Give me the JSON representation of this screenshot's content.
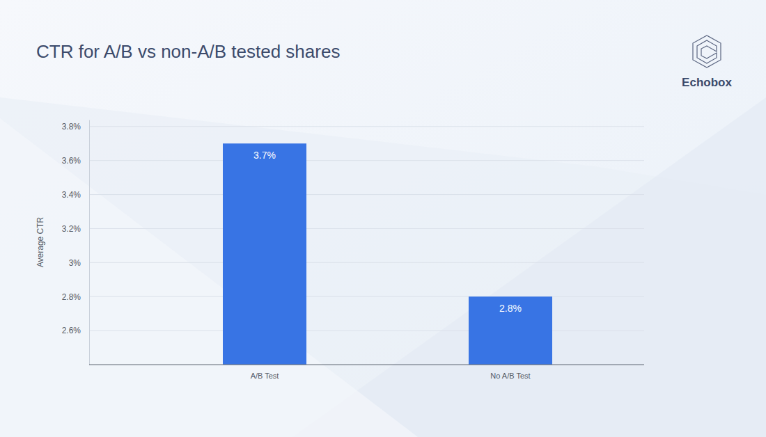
{
  "chart_data": {
    "type": "bar",
    "title": "CTR for A/B vs non-A/B tested shares",
    "y_label": "Average CTR",
    "annotations": [
      "Echobox"
    ],
    "categories": [
      "A/B Test",
      "No A/B Test"
    ],
    "values": [
      3.7,
      2.8
    ],
    "value_labels": [
      "3.7%",
      "2.8%"
    ],
    "color": "#3874e4",
    "ylim": [
      2.4,
      3.84
    ],
    "yticks": [
      {
        "value": 2.6,
        "label": "2.6%"
      },
      {
        "value": 2.8,
        "label": "2.8%"
      },
      {
        "value": 3.0,
        "label": "3%"
      },
      {
        "value": 3.2,
        "label": "3.2%"
      },
      {
        "value": 3.4,
        "label": "3.4%"
      },
      {
        "value": 3.6,
        "label": "3.6%"
      },
      {
        "value": 3.8,
        "label": "3.8%"
      }
    ],
    "grid": true,
    "data_labels": true
  }
}
